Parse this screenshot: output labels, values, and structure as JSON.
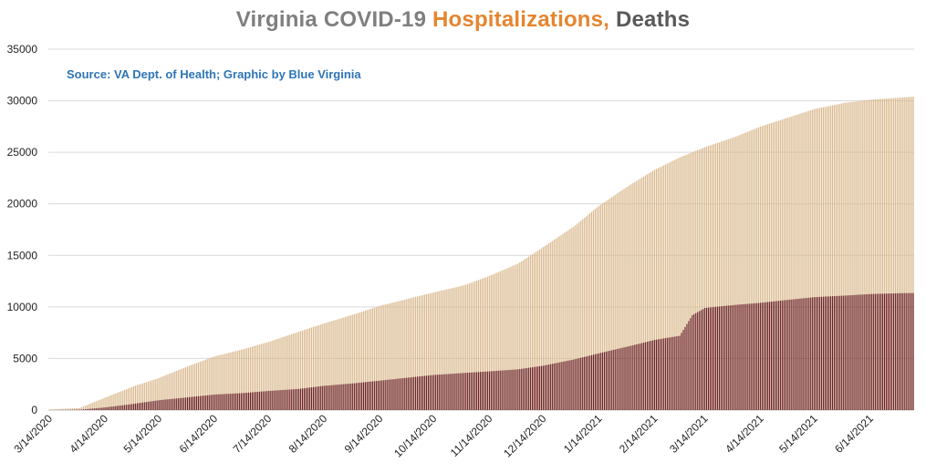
{
  "title": {
    "part1": "Virginia COVID-19 ",
    "part2": "Hospitalizations,",
    "part3": " Deaths",
    "colors": {
      "part1": "#7f7f7f",
      "part2": "#e6852f",
      "part3": "#595959"
    }
  },
  "source_note": {
    "text": "Source: VA Dept. of Health; Graphic by Blue Virginia",
    "color": "#2e75b6"
  },
  "chart_data": {
    "type": "bar",
    "stacked": false,
    "grid": true,
    "x_range": [
      "3/14/2020",
      "7/8/2021"
    ],
    "ylim": [
      0,
      35000
    ],
    "y_ticks": [
      0,
      5000,
      10000,
      15000,
      20000,
      25000,
      30000,
      35000
    ],
    "x_tick_labels": [
      "3/14/2020",
      "4/14/2020",
      "5/14/2020",
      "6/14/2020",
      "7/14/2020",
      "8/14/2020",
      "9/14/2020",
      "10/14/2020",
      "11/14/2020",
      "12/14/2020",
      "1/14/2021",
      "2/14/2021",
      "3/14/2021",
      "4/14/2021",
      "5/14/2021",
      "6/14/2021"
    ],
    "series": [
      {
        "name": "Hospitalizations",
        "color": "#d9b88c",
        "points": [
          [
            "3/14/2020",
            50
          ],
          [
            "3/31/2020",
            200
          ],
          [
            "4/14/2020",
            1200
          ],
          [
            "4/30/2020",
            2300
          ],
          [
            "5/14/2020",
            3100
          ],
          [
            "5/31/2020",
            4300
          ],
          [
            "6/14/2020",
            5200
          ],
          [
            "6/30/2020",
            5900
          ],
          [
            "7/14/2020",
            6600
          ],
          [
            "7/31/2020",
            7600
          ],
          [
            "8/14/2020",
            8400
          ],
          [
            "8/31/2020",
            9300
          ],
          [
            "9/14/2020",
            10100
          ],
          [
            "9/30/2020",
            10800
          ],
          [
            "10/14/2020",
            11400
          ],
          [
            "10/31/2020",
            12100
          ],
          [
            "11/14/2020",
            13000
          ],
          [
            "11/30/2020",
            14200
          ],
          [
            "12/14/2020",
            15800
          ],
          [
            "12/31/2020",
            17800
          ],
          [
            "1/14/2021",
            19800
          ],
          [
            "1/31/2021",
            21800
          ],
          [
            "2/14/2021",
            23300
          ],
          [
            "2/28/2021",
            24500
          ],
          [
            "3/14/2021",
            25500
          ],
          [
            "3/31/2021",
            26500
          ],
          [
            "4/14/2021",
            27500
          ],
          [
            "4/30/2021",
            28400
          ],
          [
            "5/14/2021",
            29200
          ],
          [
            "5/31/2021",
            29800
          ],
          [
            "6/14/2021",
            30100
          ],
          [
            "6/30/2021",
            30300
          ],
          [
            "7/8/2021",
            30400
          ]
        ]
      },
      {
        "name": "Deaths",
        "color": "#6b2020",
        "points": [
          [
            "3/14/2020",
            0
          ],
          [
            "3/31/2020",
            30
          ],
          [
            "4/14/2020",
            250
          ],
          [
            "4/30/2020",
            600
          ],
          [
            "5/14/2020",
            950
          ],
          [
            "5/31/2020",
            1250
          ],
          [
            "6/14/2020",
            1500
          ],
          [
            "6/30/2020",
            1650
          ],
          [
            "7/14/2020",
            1850
          ],
          [
            "7/31/2020",
            2050
          ],
          [
            "8/14/2020",
            2350
          ],
          [
            "8/31/2020",
            2600
          ],
          [
            "9/14/2020",
            2850
          ],
          [
            "9/30/2020",
            3150
          ],
          [
            "10/14/2020",
            3400
          ],
          [
            "10/31/2020",
            3600
          ],
          [
            "11/14/2020",
            3750
          ],
          [
            "11/30/2020",
            3950
          ],
          [
            "12/14/2020",
            4300
          ],
          [
            "12/31/2020",
            4900
          ],
          [
            "1/14/2021",
            5500
          ],
          [
            "1/31/2021",
            6200
          ],
          [
            "2/14/2021",
            6800
          ],
          [
            "2/28/2021",
            7200
          ],
          [
            "3/7/2021",
            9200
          ],
          [
            "3/14/2021",
            9900
          ],
          [
            "3/31/2021",
            10200
          ],
          [
            "4/14/2021",
            10400
          ],
          [
            "4/30/2021",
            10700
          ],
          [
            "5/14/2021",
            10950
          ],
          [
            "5/31/2021",
            11100
          ],
          [
            "6/14/2021",
            11250
          ],
          [
            "6/30/2021",
            11330
          ],
          [
            "7/8/2021",
            11350
          ]
        ]
      }
    ]
  }
}
